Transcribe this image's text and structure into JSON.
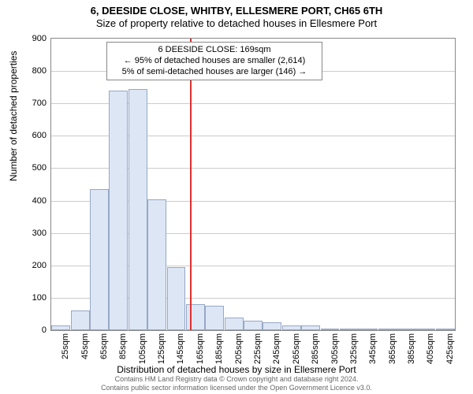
{
  "title": "6, DEESIDE CLOSE, WHITBY, ELLESMERE PORT, CH65 6TH",
  "subtitle": "Size of property relative to detached houses in Ellesmere Port",
  "y_axis": {
    "label": "Number of detached properties",
    "min": 0,
    "max": 900,
    "step": 100
  },
  "x_axis": {
    "label": "Distribution of detached houses by size in Ellesmere Port",
    "categories": [
      "25sqm",
      "45sqm",
      "65sqm",
      "85sqm",
      "105sqm",
      "125sqm",
      "145sqm",
      "165sqm",
      "185sqm",
      "205sqm",
      "225sqm",
      "245sqm",
      "265sqm",
      "285sqm",
      "305sqm",
      "325sqm",
      "345sqm",
      "365sqm",
      "385sqm",
      "405sqm",
      "425sqm"
    ]
  },
  "bars": [
    15,
    60,
    435,
    740,
    745,
    405,
    195,
    80,
    75,
    40,
    30,
    25,
    15,
    15,
    5,
    0,
    0,
    0,
    0,
    0,
    3
  ],
  "marker": {
    "index_position": 7.2,
    "color": "#e03030",
    "annotation_line1": "6 DEESIDE CLOSE: 169sqm",
    "annotation_line2": "← 95% of detached houses are smaller (2,614)",
    "annotation_line3": "5% of semi-detached houses are larger (146) →"
  },
  "colors": {
    "bar_fill": "#dce6f5",
    "bar_border": "#97a8c4",
    "grid": "#cccccc",
    "axis": "#888888",
    "marker": "#e03030",
    "background": "#ffffff"
  },
  "footer_line1": "Contains HM Land Registry data © Crown copyright and database right 2024.",
  "footer_line2": "Contains public sector information licensed under the Open Government Licence v3.0."
}
